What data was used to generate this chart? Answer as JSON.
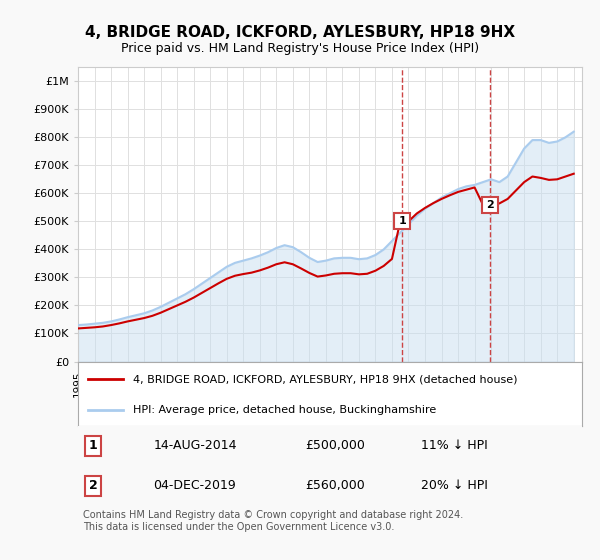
{
  "title": "4, BRIDGE ROAD, ICKFORD, AYLESBURY, HP18 9HX",
  "subtitle": "Price paid vs. HM Land Registry's House Price Index (HPI)",
  "ylabel": "",
  "ylim": [
    0,
    1050000
  ],
  "yticks": [
    0,
    100000,
    200000,
    300000,
    400000,
    500000,
    600000,
    700000,
    800000,
    900000,
    1000000
  ],
  "ytick_labels": [
    "£0",
    "£100K",
    "£200K",
    "£300K",
    "£400K",
    "£500K",
    "£600K",
    "£700K",
    "£800K",
    "£900K",
    "£1M"
  ],
  "xlim_start": 1995.0,
  "xlim_end": 2025.5,
  "background_color": "#f9f9f9",
  "plot_bg_color": "#ffffff",
  "grid_color": "#e0e0e0",
  "hpi_color": "#aaccee",
  "price_color": "#cc0000",
  "transaction1_date": 2014.62,
  "transaction1_price": 500000,
  "transaction2_date": 2019.92,
  "transaction2_price": 560000,
  "legend_property": "4, BRIDGE ROAD, ICKFORD, AYLESBURY, HP18 9HX (detached house)",
  "legend_hpi": "HPI: Average price, detached house, Buckinghamshire",
  "annotation1_label": "1",
  "annotation1_date": "14-AUG-2014",
  "annotation1_price": "£500,000",
  "annotation1_note": "11% ↓ HPI",
  "annotation2_label": "2",
  "annotation2_date": "04-DEC-2019",
  "annotation2_price": "£560,000",
  "annotation2_note": "20% ↓ HPI",
  "footer": "Contains HM Land Registry data © Crown copyright and database right 2024.\nThis data is licensed under the Open Government Licence v3.0.",
  "hpi_x": [
    1995,
    1995.5,
    1996,
    1996.5,
    1997,
    1997.5,
    1998,
    1998.5,
    1999,
    1999.5,
    2000,
    2000.5,
    2001,
    2001.5,
    2002,
    2002.5,
    2003,
    2003.5,
    2004,
    2004.5,
    2005,
    2005.5,
    2006,
    2006.5,
    2007,
    2007.5,
    2008,
    2008.5,
    2009,
    2009.5,
    2010,
    2010.5,
    2011,
    2011.5,
    2012,
    2012.5,
    2013,
    2013.5,
    2014,
    2014.5,
    2015,
    2015.5,
    2016,
    2016.5,
    2017,
    2017.5,
    2018,
    2018.5,
    2019,
    2019.5,
    2020,
    2020.5,
    2021,
    2021.5,
    2022,
    2022.5,
    2023,
    2023.5,
    2024,
    2024.5,
    2025
  ],
  "hpi_y": [
    130000,
    132000,
    135000,
    138000,
    143000,
    150000,
    158000,
    165000,
    172000,
    182000,
    195000,
    210000,
    225000,
    240000,
    258000,
    278000,
    298000,
    318000,
    338000,
    352000,
    360000,
    368000,
    378000,
    390000,
    405000,
    415000,
    408000,
    390000,
    370000,
    355000,
    360000,
    368000,
    370000,
    370000,
    365000,
    368000,
    380000,
    400000,
    430000,
    460000,
    490000,
    520000,
    545000,
    565000,
    585000,
    600000,
    615000,
    625000,
    630000,
    640000,
    650000,
    640000,
    660000,
    710000,
    760000,
    790000,
    790000,
    780000,
    785000,
    800000,
    820000
  ],
  "price_x": [
    1995,
    1995.5,
    1996,
    1996.5,
    1997,
    1997.5,
    1998,
    1998.5,
    1999,
    1999.5,
    2000,
    2000.5,
    2001,
    2001.5,
    2002,
    2002.5,
    2003,
    2003.5,
    2004,
    2004.5,
    2005,
    2005.5,
    2006,
    2006.5,
    2007,
    2007.5,
    2008,
    2008.5,
    2009,
    2009.5,
    2010,
    2010.5,
    2011,
    2011.5,
    2012,
    2012.5,
    2013,
    2013.5,
    2014,
    2014.5,
    2015,
    2015.5,
    2016,
    2016.5,
    2017,
    2017.5,
    2018,
    2018.5,
    2019,
    2019.5,
    2020,
    2020.5,
    2021,
    2021.5,
    2022,
    2022.5,
    2023,
    2023.5,
    2024,
    2024.5,
    2025
  ],
  "price_y": [
    118000,
    120000,
    122000,
    125000,
    130000,
    136000,
    143000,
    149000,
    155000,
    163000,
    174000,
    187000,
    200000,
    213000,
    228000,
    245000,
    262000,
    279000,
    295000,
    306000,
    312000,
    317000,
    325000,
    335000,
    347000,
    354000,
    347000,
    332000,
    316000,
    303000,
    307000,
    313000,
    315000,
    315000,
    311000,
    313000,
    324000,
    341000,
    366000,
    500000,
    500000,
    528000,
    548000,
    565000,
    580000,
    593000,
    605000,
    613000,
    621000,
    560000,
    560000,
    564000,
    580000,
    610000,
    640000,
    660000,
    655000,
    648000,
    650000,
    660000,
    670000
  ]
}
